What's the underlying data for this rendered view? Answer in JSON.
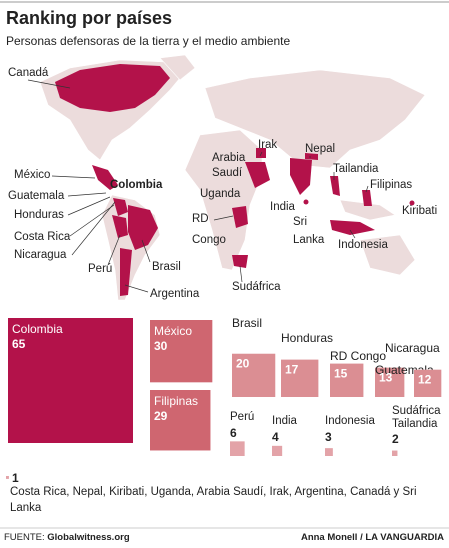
{
  "chart_data": {
    "type": "proportional_squares",
    "title": "Ranking por países",
    "subtitle": "Personas defensoras de la tierra y el medio ambiente",
    "map_labels": [
      "Canadá",
      "Arabia",
      "Saudí",
      "Irak",
      "Nepal",
      "Tailandia",
      "Filipinas",
      "Kiribati",
      "México",
      "Guatemala",
      "Honduras",
      "Costa Rica",
      "Nicaragua",
      "Colombia",
      "Uganda",
      "RD",
      "Congo",
      "India",
      "Sri",
      "Lanka",
      "Indonesia",
      "Perú",
      "Brasil",
      "Argentina",
      "Sudáfrica"
    ],
    "items": [
      {
        "names": [
          "Colombia"
        ],
        "value": 65,
        "color": "#b3124a"
      },
      {
        "names": [
          "México"
        ],
        "value": 30,
        "color": "#cf6670"
      },
      {
        "names": [
          "Filipinas"
        ],
        "value": 29,
        "color": "#cf6670"
      },
      {
        "names": [
          "Brasil"
        ],
        "value": 20,
        "color": "#db8e93"
      },
      {
        "names": [
          "Honduras"
        ],
        "value": 17,
        "color": "#db8e93"
      },
      {
        "names": [
          "RD Congo"
        ],
        "value": 15,
        "color": "#db8e93"
      },
      {
        "names": [
          "Guatemala"
        ],
        "value": 13,
        "color": "#db8e93"
      },
      {
        "names": [
          "Nicaragua"
        ],
        "value": 12,
        "color": "#db8e93"
      },
      {
        "names": [
          "Perú"
        ],
        "value": 6,
        "color": "#e3a3a8"
      },
      {
        "names": [
          "India"
        ],
        "value": 4,
        "color": "#e3a3a8"
      },
      {
        "names": [
          "Indonesia"
        ],
        "value": 3,
        "color": "#e3a3a8"
      },
      {
        "names": [
          "Sudáfrica",
          "Tailandia"
        ],
        "value": 2,
        "color": "#e3a3a8"
      },
      {
        "names": [
          "Costa Rica, Nepal, Kiribati, Uganda, Arabia Saudí, Irak, Argentina, Canadá y Sri Lanka"
        ],
        "value": 1,
        "color": "#e3a3a8"
      }
    ],
    "source_label": "FUENTE:",
    "source": "Globalwitness.org",
    "credit": "Anna Monell / LA VANGUARDIA"
  }
}
